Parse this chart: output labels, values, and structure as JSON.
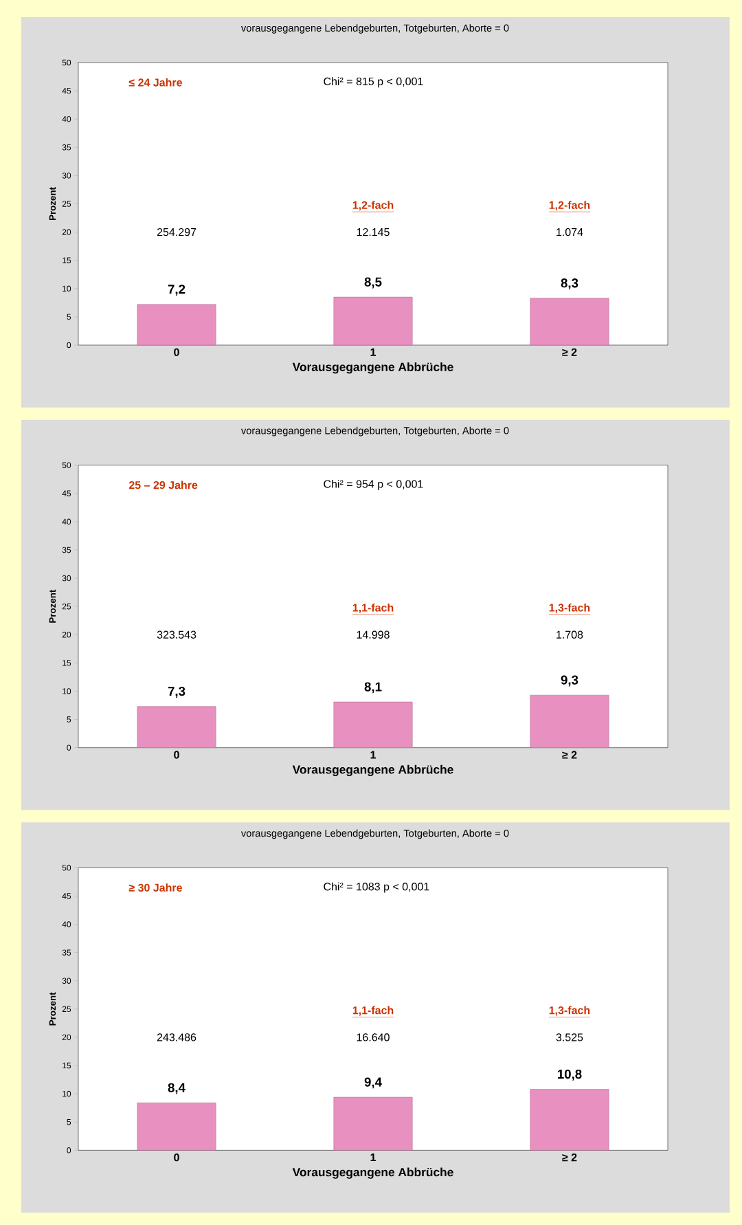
{
  "chart_data": [
    {
      "type": "bar",
      "title": "vorausgegangene Lebendgeburten, Totgeburten, Aborte = 0",
      "xlabel": "Vorausgegangene Abbrüche",
      "ylabel": "Prozent",
      "categories": [
        "0",
        "1",
        "≥ 2"
      ],
      "values": [
        7.2,
        8.5,
        8.3
      ],
      "value_labels": [
        "7,2",
        "8,5",
        "8,3"
      ],
      "color": "#e890c0",
      "ylim": [
        0,
        50
      ],
      "yticks": [
        0,
        5,
        10,
        15,
        20,
        25,
        30,
        35,
        40,
        45,
        50
      ],
      "annotations": [
        "≤ 24 Jahre",
        "Chi² = 815     p < 0,001",
        "254.297",
        "12.145",
        "1,2-fach",
        "1.074",
        "1,2-fach"
      ]
    },
    {
      "type": "bar",
      "title": "vorausgegangene Lebendgeburten, Totgeburten, Aborte = 0",
      "xlabel": "Vorausgegangene Abbrüche",
      "ylabel": "Prozent",
      "categories": [
        "0",
        "1",
        "≥ 2"
      ],
      "values": [
        7.3,
        8.1,
        9.3
      ],
      "value_labels": [
        "7,3",
        "8,1",
        "9,3"
      ],
      "color": "#e890c0",
      "ylim": [
        0,
        50
      ],
      "yticks": [
        0,
        5,
        10,
        15,
        20,
        25,
        30,
        35,
        40,
        45,
        50
      ],
      "annotations": [
        "25 – 29 Jahre",
        "Chi² = 954     p < 0,001",
        "323.543",
        "14.998",
        "1,1-fach",
        "1.708",
        "1,3-fach"
      ]
    },
    {
      "type": "bar",
      "title": "vorausgegangene Lebendgeburten, Totgeburten, Aborte = 0",
      "xlabel": "Vorausgegangene Abbrüche",
      "ylabel": "Prozent",
      "categories": [
        "0",
        "1",
        "≥ 2"
      ],
      "values": [
        8.4,
        9.4,
        10.8
      ],
      "value_labels": [
        "8,4",
        "9,4",
        "10,8"
      ],
      "color": "#e890c0",
      "ylim": [
        0,
        50
      ],
      "yticks": [
        0,
        5,
        10,
        15,
        20,
        25,
        30,
        35,
        40,
        45,
        50
      ],
      "annotations": [
        "≥ 30 Jahre",
        "Chi² = 1083     p < 0,001",
        "243.486",
        "16.640",
        "1,1-fach",
        "3.525",
        "1,3-fach"
      ]
    }
  ]
}
